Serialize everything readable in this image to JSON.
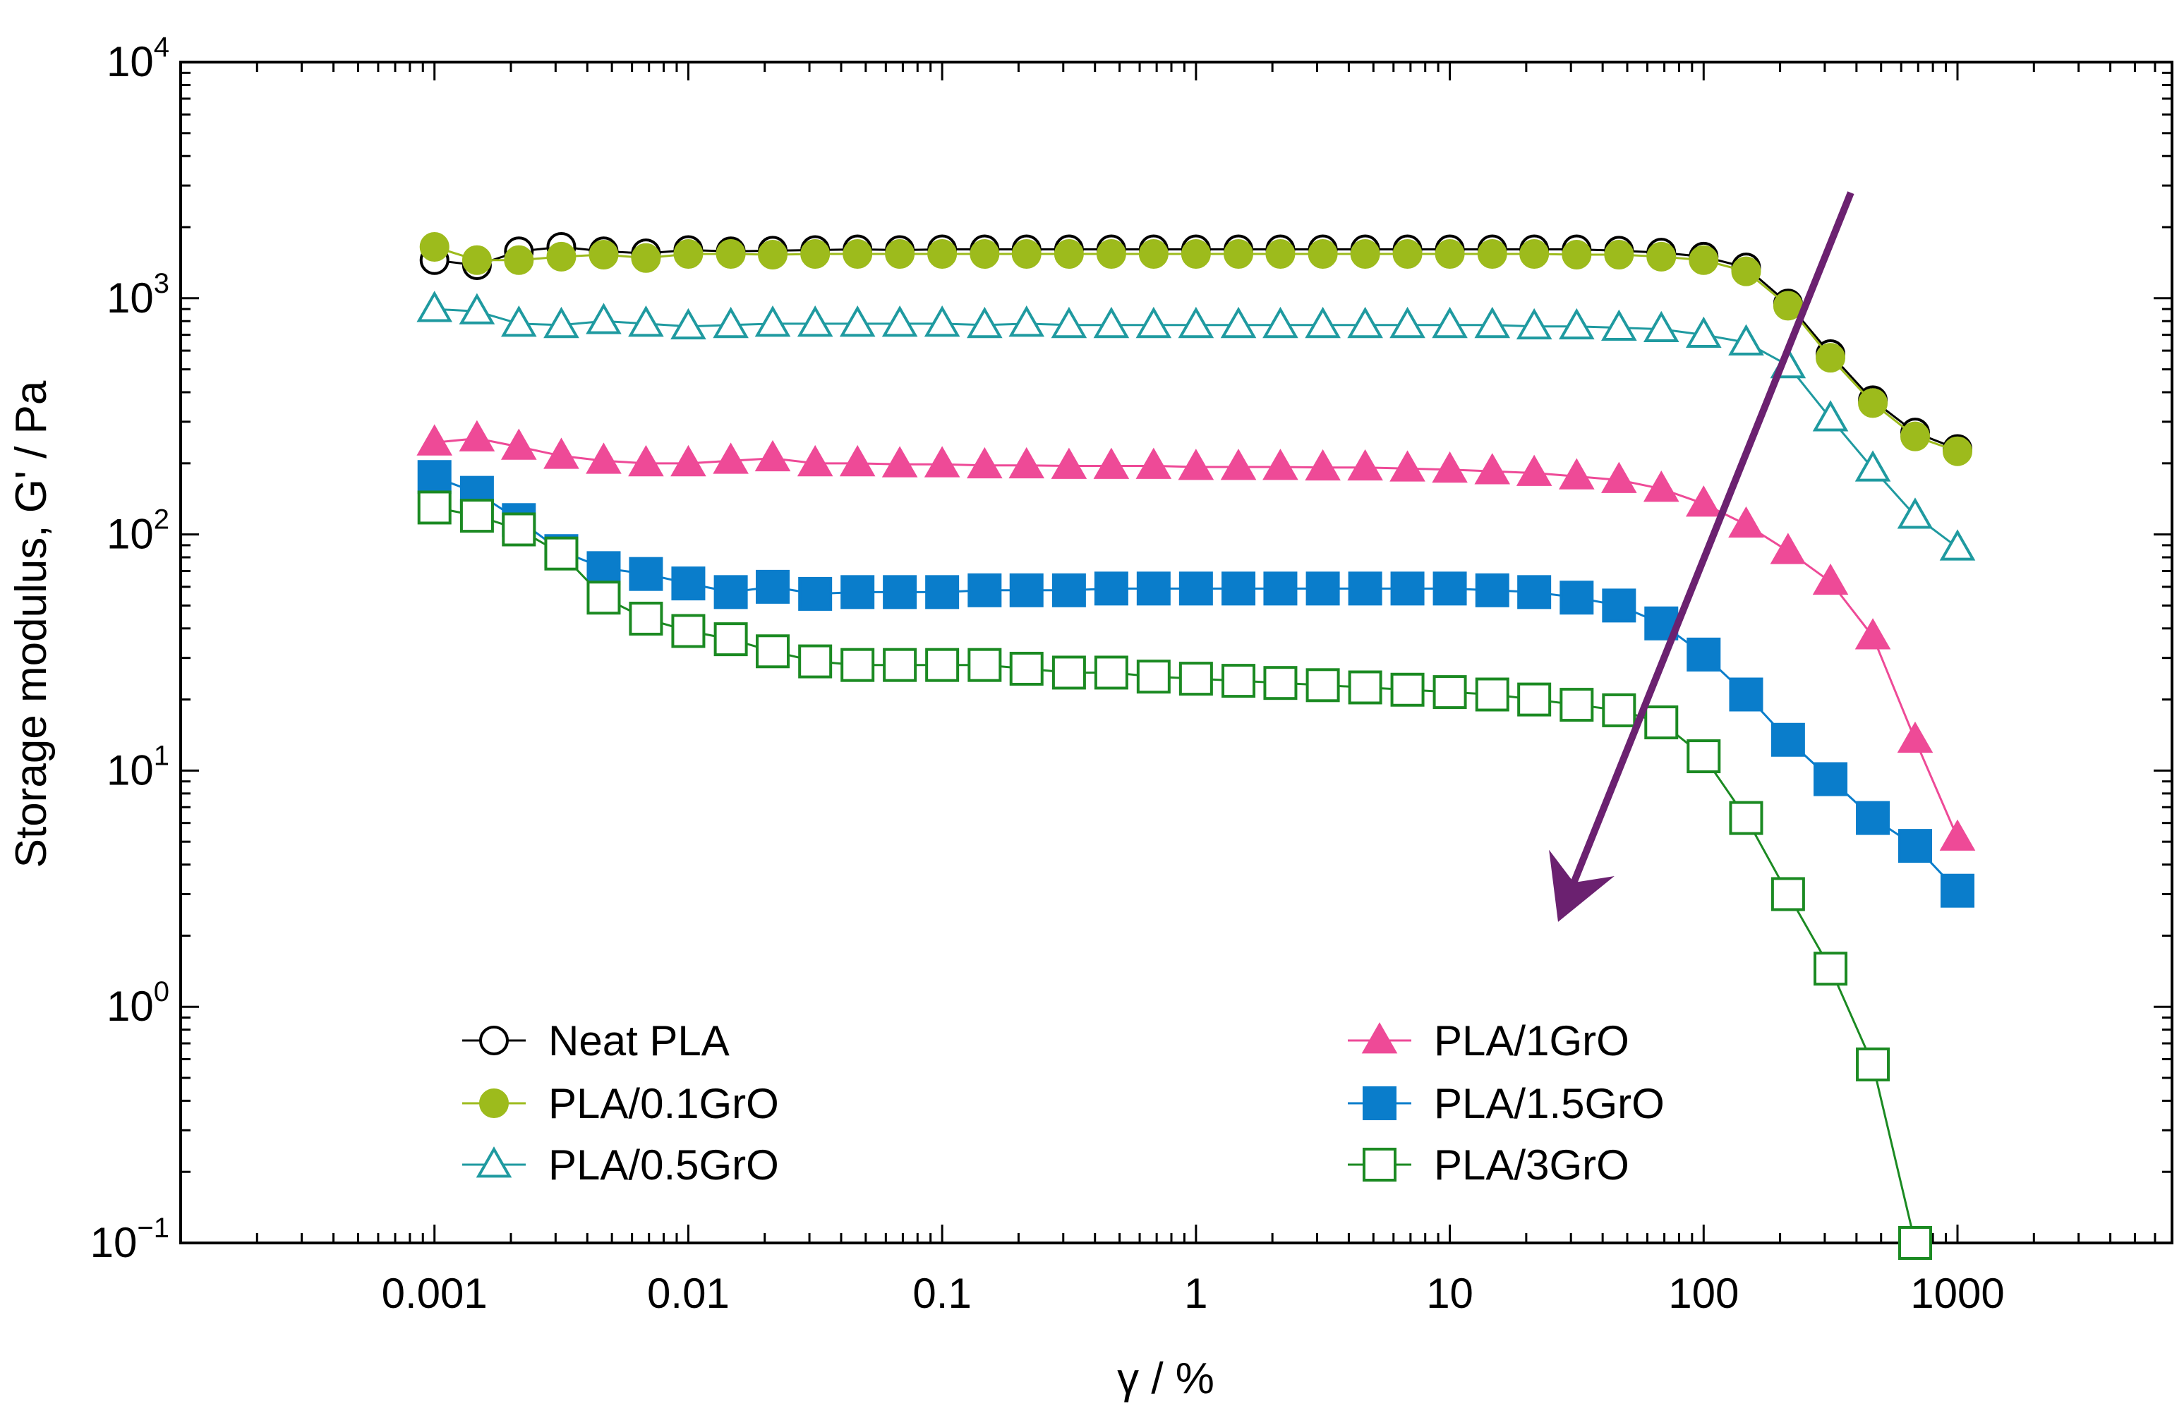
{
  "chart_data": {
    "type": "line",
    "title": "",
    "xlabel": "γ / %",
    "ylabel": "Storage modulus, G' / Pa",
    "xscale": "log",
    "yscale": "log",
    "xlim": [
      0.0001,
      7000
    ],
    "ylim": [
      0.1,
      10000
    ],
    "grid": false,
    "legend_position": "bottom, two columns",
    "x_ticks": [
      {
        "value": 0.001,
        "label": "0.001"
      },
      {
        "value": 0.01,
        "label": "0.01"
      },
      {
        "value": 0.1,
        "label": "0.1"
      },
      {
        "value": 1,
        "label": "1"
      },
      {
        "value": 10,
        "label": "10"
      },
      {
        "value": 100,
        "label": "100"
      },
      {
        "value": 1000,
        "label": "1000"
      }
    ],
    "y_ticks": [
      {
        "value": 10000,
        "base": "10",
        "exp": "4"
      },
      {
        "value": 1000,
        "base": "10",
        "exp": "3"
      },
      {
        "value": 100,
        "base": "10",
        "exp": "2"
      },
      {
        "value": 10,
        "base": "10",
        "exp": "1"
      },
      {
        "value": 1,
        "base": "10",
        "exp": "0"
      },
      {
        "value": 0.1,
        "base": "10",
        "exp": "−1"
      }
    ],
    "x": [
      0.001,
      0.00147,
      0.00215,
      0.00316,
      0.00464,
      0.00681,
      0.01,
      0.0147,
      0.0215,
      0.0316,
      0.0464,
      0.0681,
      0.1,
      0.147,
      0.215,
      0.316,
      0.464,
      0.681,
      1,
      1.47,
      2.15,
      3.16,
      4.64,
      6.81,
      10,
      14.7,
      21.5,
      31.6,
      46.4,
      68.1,
      100,
      147,
      215,
      316,
      464,
      681,
      1000
    ],
    "series": [
      {
        "name": "Neat PLA",
        "color": "#000000",
        "marker": "circle",
        "filled": false,
        "values": [
          1450,
          1380,
          1580,
          1650,
          1580,
          1550,
          1600,
          1580,
          1590,
          1600,
          1610,
          1600,
          1610,
          1610,
          1610,
          1610,
          1610,
          1610,
          1610,
          1610,
          1610,
          1610,
          1610,
          1610,
          1610,
          1610,
          1610,
          1610,
          1590,
          1560,
          1500,
          1350,
          950,
          580,
          370,
          270,
          230
        ]
      },
      {
        "name": "PLA/0.1GrO",
        "color": "#9dbb1c",
        "marker": "circle",
        "filled": true,
        "values": [
          1650,
          1450,
          1450,
          1500,
          1530,
          1480,
          1540,
          1540,
          1530,
          1540,
          1540,
          1540,
          1540,
          1540,
          1540,
          1540,
          1540,
          1540,
          1540,
          1540,
          1540,
          1540,
          1540,
          1540,
          1540,
          1540,
          1540,
          1530,
          1530,
          1500,
          1450,
          1300,
          930,
          560,
          360,
          260,
          225
        ]
      },
      {
        "name": "PLA/0.5GrO",
        "color": "#1f9aa0",
        "marker": "triangle",
        "filled": false,
        "values": [
          900,
          880,
          780,
          770,
          800,
          780,
          760,
          770,
          780,
          780,
          780,
          780,
          780,
          770,
          780,
          770,
          770,
          770,
          770,
          770,
          770,
          770,
          770,
          770,
          770,
          770,
          760,
          760,
          750,
          740,
          700,
          650,
          520,
          310,
          190,
          120,
          88
        ]
      },
      {
        "name": "PLA/1GrO",
        "color": "#ee4a97",
        "marker": "triangle",
        "filled": true,
        "values": [
          245,
          255,
          235,
          215,
          205,
          200,
          200,
          205,
          210,
          200,
          200,
          198,
          198,
          196,
          196,
          195,
          195,
          195,
          193,
          193,
          193,
          192,
          192,
          190,
          188,
          185,
          182,
          176,
          170,
          156,
          135,
          110,
          85,
          63,
          37,
          13.5,
          5.2
        ]
      },
      {
        "name": "PLA/1.5GrO",
        "color": "#0a7dcb",
        "marker": "square",
        "filled": true,
        "values": [
          175,
          150,
          115,
          85,
          72,
          68,
          62,
          57,
          60,
          56,
          57,
          57,
          57,
          58,
          58,
          58,
          59,
          59,
          59,
          59,
          59,
          59,
          59,
          59,
          59,
          58,
          57,
          54,
          50,
          42,
          31,
          21,
          13.5,
          9.2,
          6.3,
          4.8,
          3.1
        ]
      },
      {
        "name": "PLA/3GrO",
        "color": "#1b8a22",
        "marker": "square",
        "filled": false,
        "values": [
          130,
          120,
          105,
          83,
          54,
          44,
          39,
          36,
          32,
          29,
          28,
          28,
          28,
          28,
          27,
          26,
          26,
          25,
          24.5,
          24,
          23.5,
          23,
          22.5,
          22,
          21.5,
          21,
          20,
          19,
          18,
          16,
          11.5,
          6.3,
          3,
          1.45,
          0.57,
          0.1,
          null
        ]
      }
    ],
    "annotation": {
      "type": "arrow",
      "color": "#6b2170",
      "description": "decreasing G' with increasing GrO content",
      "from": {
        "x": 380,
        "y": 2800
      },
      "to": {
        "x": 28,
        "y": 2.6
      }
    }
  }
}
